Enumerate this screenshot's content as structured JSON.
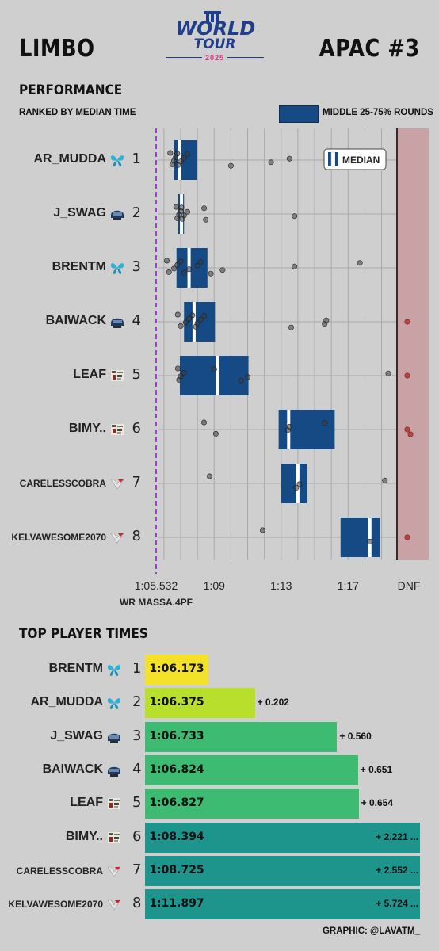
{
  "header": {
    "left_title": "LIMBO",
    "right_title": "APAC #3",
    "logo": {
      "line1": "WORLD",
      "line2": "TOUR",
      "year": "2025"
    }
  },
  "performance": {
    "title": "PERFORMANCE",
    "subtitle": "RANKED BY MEDIAN TIME",
    "legend_box_label": "MIDDLE 25-75% ROUNDS",
    "legend_median_label": "MEDIAN",
    "wr_label": "WR MASSA.4PF",
    "dnf_label": "DNF"
  },
  "top_times": {
    "title": "TOP  PLAYER TIMES",
    "credit": "GRAPHIC: @LAVATM_"
  },
  "colors": {
    "box": "#164a85",
    "wr_line": "#a23bd9",
    "dnf_zone": "#c9a2a6",
    "gold": "#f3e12a",
    "lime": "#b9df2d",
    "green": "#3dbb72",
    "teal": "#1e958c"
  },
  "chart_data": [
    {
      "type": "box",
      "title": "PERFORMANCE",
      "subtitle": "RANKED BY MEDIAN TIME",
      "x_unit": "seconds",
      "x_range": [
        65.532,
        80.2
      ],
      "x_ticks": [
        {
          "value": 65.532,
          "label": "1:05.532"
        },
        {
          "value": 69,
          "label": "1:09"
        },
        {
          "value": 73,
          "label": "1:13"
        },
        {
          "value": 77,
          "label": "1:17"
        }
      ],
      "dnf_label": "DNF",
      "grid": true,
      "legend": {
        "box": "MIDDLE 25-75% ROUNDS",
        "median": "MEDIAN",
        "placement": "top-right"
      },
      "players": [
        {
          "rank": "1",
          "name": "AR_MUDDA",
          "team": "butterfly",
          "q1": 66.6,
          "median": 66.95,
          "q3": 67.95,
          "points": [
            66.375,
            66.5,
            66.6,
            66.7,
            66.8,
            66.85,
            67.0,
            67.2,
            67.4,
            70.0,
            72.4,
            73.5
          ],
          "dnf": 0
        },
        {
          "rank": "2",
          "name": "J_SWAG",
          "team": "helmet",
          "q1": 66.85,
          "median": 67.05,
          "q3": 67.2,
          "points": [
            66.733,
            66.8,
            66.9,
            67.0,
            67.05,
            67.1,
            67.2,
            67.4,
            68.4,
            68.5,
            73.8
          ],
          "dnf": 0
        },
        {
          "rank": "3",
          "name": "BRENTM",
          "team": "butterfly",
          "q1": 66.75,
          "median": 67.5,
          "q3": 68.6,
          "points": [
            66.173,
            66.3,
            66.6,
            66.8,
            67.0,
            67.2,
            67.5,
            68.0,
            68.2,
            68.8,
            69.5,
            73.8,
            77.7
          ],
          "dnf": 0
        },
        {
          "rank": "4",
          "name": "BAIWACK",
          "team": "helmet",
          "q1": 67.2,
          "median": 67.8,
          "q3": 69.05,
          "points": [
            66.824,
            67.0,
            67.3,
            67.5,
            67.7,
            67.9,
            68.0,
            68.2,
            68.4,
            73.6,
            75.6,
            75.7
          ],
          "dnf": 1
        },
        {
          "rank": "5",
          "name": "LEAF",
          "team": "mosaic",
          "q1": 66.95,
          "median": 69.2,
          "q3": 71.05,
          "points": [
            66.827,
            66.9,
            67.0,
            67.2,
            69.0,
            70.6,
            71.0,
            79.4
          ],
          "dnf": 1
        },
        {
          "rank": "6",
          "name": "BIMY..",
          "team": "mosaic",
          "q1": 72.85,
          "median": 73.45,
          "q3": 76.2,
          "points": [
            68.394,
            69.1,
            73.4,
            73.5,
            75.6
          ],
          "dnf": 2
        },
        {
          "rank": "7",
          "name": "CARELESSCOBRA",
          "team": "redv",
          "q1": 73.0,
          "median": 74.0,
          "q3": 74.55,
          "points": [
            68.725,
            73.9,
            74.1,
            79.2
          ],
          "dnf": 0
        },
        {
          "rank": "8",
          "name": "KELVAWESOME2070",
          "team": "redv",
          "q1": 76.55,
          "median": 78.3,
          "q3": 78.9,
          "points": [
            71.897,
            78.3
          ],
          "dnf": 1
        }
      ]
    },
    {
      "type": "bar",
      "title": "TOP  PLAYER TIMES",
      "rows": [
        {
          "rank": "1",
          "name": "BRENTM",
          "team": "butterfly",
          "time": "1:06.173",
          "seconds": 66.173,
          "delta": "",
          "color": "#f3e12a"
        },
        {
          "rank": "2",
          "name": "AR_MUDDA",
          "team": "butterfly",
          "time": "1:06.375",
          "seconds": 66.375,
          "delta": "+ 0.202",
          "color": "#b9df2d"
        },
        {
          "rank": "3",
          "name": "J_SWAG",
          "team": "helmet",
          "time": "1:06.733",
          "seconds": 66.733,
          "delta": "+ 0.560",
          "color": "#3dbb72"
        },
        {
          "rank": "4",
          "name": "BAIWACK",
          "team": "helmet",
          "time": "1:06.824",
          "seconds": 66.824,
          "delta": "+ 0.651",
          "color": "#3dbb72"
        },
        {
          "rank": "5",
          "name": "LEAF",
          "team": "mosaic",
          "time": "1:06.827",
          "seconds": 66.827,
          "delta": "+ 0.654",
          "color": "#3dbb72"
        },
        {
          "rank": "6",
          "name": "BIMY..",
          "team": "mosaic",
          "time": "1:08.394",
          "seconds": 68.394,
          "delta": "+ 2.221 ...",
          "color": "#1e958c"
        },
        {
          "rank": "7",
          "name": "CARELESSCOBRA",
          "team": "redv",
          "time": "1:08.725",
          "seconds": 68.725,
          "delta": "+ 2.552 ...",
          "color": "#1e958c"
        },
        {
          "rank": "8",
          "name": "KELVAWESOME2070",
          "team": "redv",
          "time": "1:11.897",
          "seconds": 71.897,
          "delta": "+ 5.724 ...",
          "color": "#1e958c"
        }
      ]
    }
  ]
}
